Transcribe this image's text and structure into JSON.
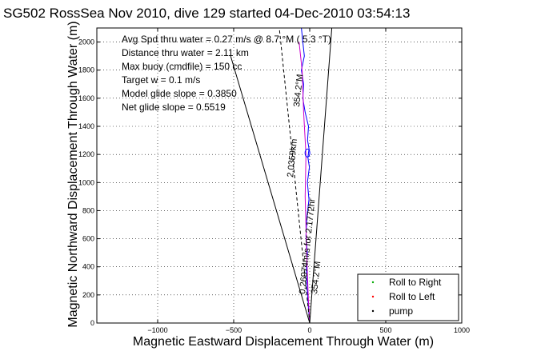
{
  "chart_data": {
    "type": "line",
    "title": "SG502 RossSea Nov 2010, dive 129 started 04-Dec-2010 03:54:13",
    "xlabel": "Magnetic Eastward Displacement Through Water (m)",
    "ylabel": "Magnetic Northward Displacement Through Water (m)",
    "xlim": [
      -1400,
      1000
    ],
    "ylim": [
      0,
      2100
    ],
    "x_ticks": [
      -1000,
      -500,
      0,
      500,
      1000
    ],
    "y_ticks": [
      0,
      200,
      400,
      600,
      800,
      1000,
      1200,
      1400,
      1600,
      1800,
      2000
    ],
    "grid": true,
    "annotations": [
      "Avg Spd thru water = 0.27 m/s @   8.7  °M ( 5.3 °T)",
      "Distance thru water = 2.11 km",
      "Max buoy (cmdfile) = 150 cc",
      "Target w = 0.1 m/s",
      "Model glide slope = 0.3850",
      "Net glide slope = 0.5519"
    ],
    "rotated_labels": {
      "heading_upper": "354.2°M",
      "distance": "2.0359km",
      "speed": "0.26974m/s for 2.1772hr",
      "heading_lower": "354.2°M"
    },
    "legend": {
      "placement": "bottom-right",
      "entries": [
        {
          "label": "Roll to Right",
          "color": "#00aa00"
        },
        {
          "label": "Roll to Left",
          "color": "#ff0000"
        },
        {
          "label": "pump",
          "color": "#000000"
        }
      ]
    },
    "series": [
      {
        "name": "track",
        "color": "#0000ff",
        "points": [
          [
            0,
            0
          ],
          [
            -8,
            100
          ],
          [
            -15,
            220
          ],
          [
            -22,
            380
          ],
          [
            -15,
            500
          ],
          [
            -25,
            620
          ],
          [
            -18,
            760
          ],
          [
            -5,
            880
          ],
          [
            -15,
            1000
          ],
          [
            -2,
            1110
          ],
          [
            -12,
            1180
          ],
          [
            -4,
            1240
          ],
          [
            -14,
            1300
          ],
          [
            -8,
            1400
          ],
          [
            -30,
            1500
          ],
          [
            -45,
            1600
          ],
          [
            -40,
            1700
          ],
          [
            -55,
            1800
          ],
          [
            -35,
            1900
          ],
          [
            -45,
            2000
          ],
          [
            -55,
            2100
          ]
        ]
      },
      {
        "name": "magenta-track",
        "color": "#cc00cc",
        "points": [
          [
            0,
            0
          ],
          [
            -10,
            200
          ],
          [
            -20,
            500
          ],
          [
            -30,
            900
          ],
          [
            -25,
            1200
          ],
          [
            -40,
            1500
          ],
          [
            -50,
            1800
          ],
          [
            -70,
            2000
          ]
        ]
      },
      {
        "name": "dashed-heading",
        "color": "#000000",
        "points": [
          [
            0,
            0
          ],
          [
            -200,
            2100
          ]
        ]
      },
      {
        "name": "cone-left",
        "color": "#000000",
        "points": [
          [
            0,
            0
          ],
          [
            -520,
            1900
          ]
        ]
      },
      {
        "name": "cone-right",
        "color": "#000000",
        "points": [
          [
            0,
            0
          ],
          [
            145,
            2100
          ]
        ]
      }
    ]
  }
}
